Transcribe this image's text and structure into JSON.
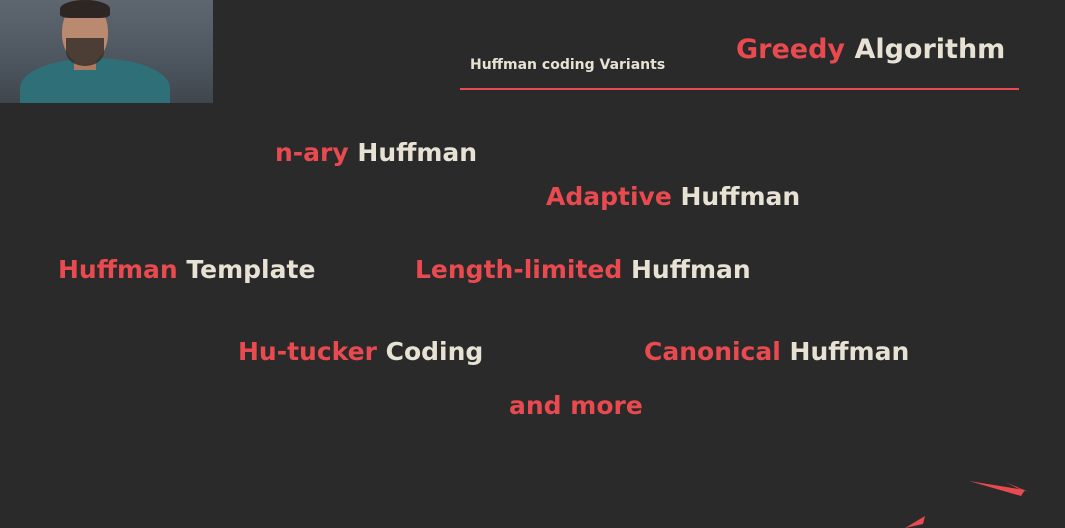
{
  "header": {
    "subtitle": "Huffman coding Variants",
    "title_highlight": "Greedy",
    "title_rest": "Algorithm"
  },
  "variants": [
    {
      "highlight": "n-ary",
      "rest": "Huffman"
    },
    {
      "highlight": "Adaptive",
      "rest": "Huffman"
    },
    {
      "highlight": "Huffman",
      "rest": "Template"
    },
    {
      "highlight": "Length-limited",
      "rest": "Huffman"
    },
    {
      "highlight": "Hu-tucker",
      "rest": "Coding"
    },
    {
      "highlight": "Canonical",
      "rest": "Huffman"
    }
  ],
  "footer_text": "and more",
  "colors": {
    "accent": "#e84a4f",
    "text": "#e8e2d4",
    "background": "#2a2a2a"
  }
}
